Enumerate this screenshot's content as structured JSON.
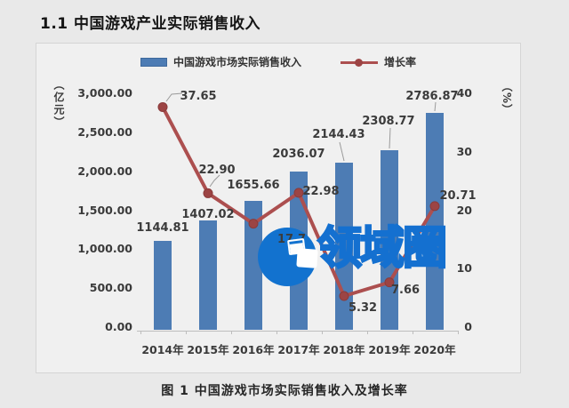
{
  "page": {
    "title": "1.1 中国游戏产业实际销售收入",
    "caption": "图 1  中国游戏市场实际销售收入及增长率"
  },
  "watermark": {
    "text": "领域圈",
    "color": "#1272cf",
    "logo": "circle-with-photo-icon"
  },
  "chart_data": {
    "type": "combo-bar-line",
    "categories": [
      "2014年",
      "2015年",
      "2016年",
      "2017年",
      "2018年",
      "2019年",
      "2020年"
    ],
    "series": [
      {
        "name": "中国游戏市场实际销售收入",
        "chart": "bar",
        "axis": "left",
        "color": "#4d7cb4",
        "values": [
          1144.81,
          1407.02,
          1655.66,
          2036.07,
          2144.43,
          2308.77,
          2786.87
        ],
        "labels": [
          "1144.81",
          "1407.02",
          "1655.66",
          "2036.07",
          "2144.43",
          "2308.77",
          "2786.87"
        ]
      },
      {
        "name": "增长率",
        "chart": "line",
        "axis": "right",
        "color": "#ac4f4f",
        "marker_color": "#9c4444",
        "values": [
          37.65,
          22.9,
          17.7,
          22.98,
          5.32,
          7.66,
          20.71
        ],
        "labels": [
          "37.65",
          "22.90",
          "17.7",
          "22.98",
          "5.32",
          "7.66",
          "20.71"
        ]
      }
    ],
    "left_axis": {
      "unit": "（亿元）",
      "min": 0,
      "max": 3000,
      "tick_labels": [
        "3,000.00",
        "2,500.00",
        "2,000.00",
        "1,500.00",
        "1,000.00",
        "500.00",
        "0.00"
      ]
    },
    "right_axis": {
      "unit": "（%）",
      "min": 0,
      "max": 40,
      "tick_labels": [
        "40",
        "30",
        "20",
        "10",
        "0"
      ]
    },
    "legend_position": "top",
    "grid": false
  }
}
